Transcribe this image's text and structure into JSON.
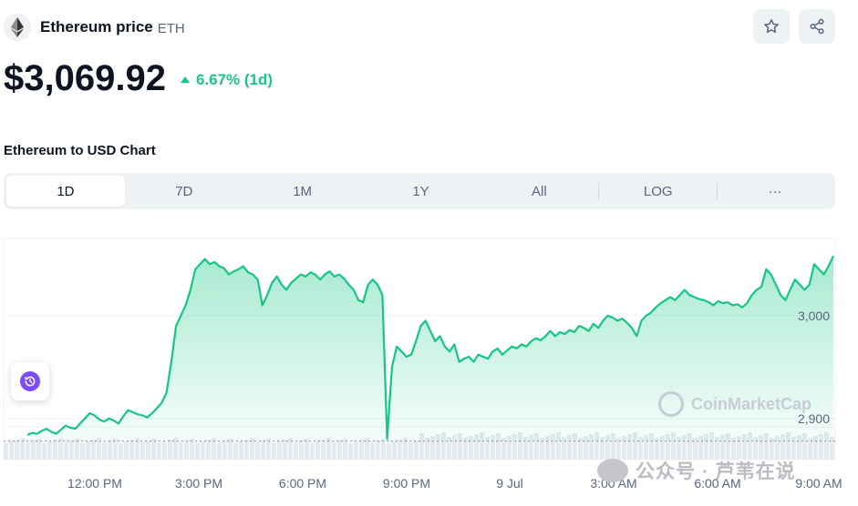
{
  "header": {
    "coin_name": "Ethereum price",
    "coin_symbol": "ETH",
    "logo_icon": "ethereum-logo-icon",
    "star_icon": "star-icon",
    "share_icon": "share-icon"
  },
  "price": {
    "value": "$3,069.92",
    "change": "6.67% (1d)",
    "change_direction": "up",
    "up_color": "#16c784"
  },
  "chart_title": "Ethereum to USD Chart",
  "range_tabs": [
    {
      "label": "1D",
      "active": true
    },
    {
      "label": "7D",
      "active": false
    },
    {
      "label": "1M",
      "active": false
    },
    {
      "label": "1Y",
      "active": false
    },
    {
      "label": "All",
      "active": false
    },
    {
      "label": "LOG",
      "active": false
    },
    {
      "label": "···",
      "active": false
    }
  ],
  "watermark": "CoinMarketCap",
  "overlay_watermark": "公众号 · 芦苇在说",
  "chart_data": {
    "type": "area",
    "x_labels": [
      "12:00 PM",
      "3:00 PM",
      "6:00 PM",
      "9:00 PM",
      "9 Jul",
      "3:00 AM",
      "6:00 AM",
      "9:00 AM"
    ],
    "y_ticks": [
      3000,
      2900
    ],
    "y_tick_labels": [
      "3,000",
      "2,900"
    ],
    "reference_line": 2878,
    "ylim": [
      2860,
      3075
    ],
    "line_color": "#16c784",
    "values": [
      2884,
      2886,
      2885,
      2888,
      2890,
      2887,
      2885,
      2889,
      2893,
      2891,
      2890,
      2895,
      2900,
      2905,
      2903,
      2899,
      2897,
      2900,
      2898,
      2895,
      2902,
      2908,
      2906,
      2904,
      2903,
      2901,
      2905,
      2910,
      2915,
      2925,
      2955,
      2990,
      3000,
      3010,
      3025,
      3045,
      3050,
      3055,
      3050,
      3052,
      3048,
      3046,
      3040,
      3043,
      3045,
      3048,
      3042,
      3040,
      3035,
      3010,
      3020,
      3032,
      3038,
      3030,
      3025,
      3032,
      3036,
      3040,
      3038,
      3042,
      3040,
      3035,
      3040,
      3043,
      3038,
      3040,
      3036,
      3030,
      3025,
      3015,
      3013,
      3030,
      3035,
      3030,
      3020,
      2880,
      2950,
      2970,
      2965,
      2960,
      2962,
      2975,
      2990,
      2995,
      2985,
      2975,
      2980,
      2970,
      2965,
      2972,
      2955,
      2958,
      2960,
      2955,
      2962,
      2960,
      2958,
      2965,
      2968,
      2962,
      2966,
      2970,
      2968,
      2972,
      2970,
      2975,
      2978,
      2976,
      2980,
      2985,
      2980,
      2984,
      2982,
      2986,
      2984,
      2990,
      2988,
      2985,
      2992,
      2988,
      2995,
      3000,
      2998,
      2995,
      2997,
      2993,
      2988,
      2980,
      2995,
      3000,
      3003,
      3008,
      3012,
      3015,
      3018,
      3015,
      3020,
      3025,
      3020,
      3018,
      3016,
      3015,
      3013,
      3010,
      3014,
      3012,
      3013,
      3010,
      3011,
      3008,
      3012,
      3020,
      3025,
      3028,
      3045,
      3040,
      3030,
      3020,
      3015,
      3025,
      3035,
      3030,
      3025,
      3030,
      3050,
      3045,
      3040,
      3048,
      3058
    ]
  }
}
